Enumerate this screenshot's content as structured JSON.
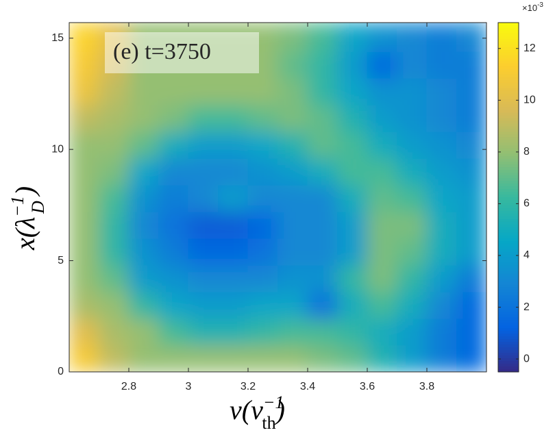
{
  "chart_data": {
    "type": "heatmap",
    "annotation": "(e) t=3750",
    "xlabel": {
      "text": "v(v",
      "sub": "th",
      "sup": "−1",
      "close": ")"
    },
    "ylabel": {
      "text": "x(λ",
      "sub": "D",
      "sup": "−1",
      "close": ")"
    },
    "x": [
      2.65,
      2.75,
      2.85,
      2.95,
      3.05,
      3.15,
      3.25,
      3.35,
      3.45,
      3.55,
      3.65,
      3.75,
      3.85,
      3.95
    ],
    "y": [
      0.6,
      1.8,
      3.0,
      4.2,
      5.4,
      6.6,
      7.8,
      9.0,
      10.2,
      11.4,
      12.6,
      13.8,
      15.0
    ],
    "z": [
      [
        11,
        9,
        8,
        8,
        8,
        8,
        8,
        8,
        7.5,
        7,
        5.5,
        4,
        2.5,
        1.5
      ],
      [
        10,
        8.5,
        8,
        6.5,
        5.5,
        5.5,
        6,
        6.5,
        6.5,
        6,
        5,
        4,
        2.5,
        1.5
      ],
      [
        8.5,
        8,
        6,
        4.5,
        4,
        4,
        4.5,
        4.5,
        2,
        5,
        6.5,
        5,
        3,
        1.5
      ],
      [
        8,
        7,
        4,
        3.5,
        3,
        3,
        3,
        3.5,
        3.5,
        6,
        7.5,
        6,
        4,
        2.5
      ],
      [
        8,
        6,
        3.5,
        2.5,
        1.5,
        1.5,
        2,
        3,
        3,
        4,
        7.5,
        7,
        5,
        4
      ],
      [
        8,
        6,
        3,
        2,
        1,
        1,
        1.5,
        3,
        3,
        4,
        7.5,
        7.5,
        5,
        4
      ],
      [
        8,
        6.5,
        3.5,
        2.5,
        3,
        4,
        3,
        3,
        3,
        5,
        7,
        6.5,
        4.5,
        4
      ],
      [
        8,
        7.5,
        4.5,
        3,
        3,
        3,
        3.5,
        4,
        5,
        6.5,
        6.5,
        5,
        4,
        3.5
      ],
      [
        8,
        8,
        7,
        5,
        4,
        4,
        4.5,
        5.5,
        7,
        6.5,
        5,
        4,
        3.5,
        3
      ],
      [
        9,
        8.5,
        8,
        7.5,
        6.5,
        6.5,
        7,
        7.5,
        7,
        5.5,
        4,
        3.5,
        3,
        2.5
      ],
      [
        10.5,
        9,
        8,
        8,
        8,
        8,
        8,
        7.5,
        6,
        4.5,
        3.5,
        3.5,
        3,
        2.5
      ],
      [
        11,
        9.5,
        8,
        8,
        8,
        8,
        8,
        7,
        6,
        4,
        1.5,
        3,
        2.5,
        2.5
      ],
      [
        11.5,
        10,
        8,
        8,
        8,
        8,
        8,
        7.5,
        6.5,
        4.5,
        3.5,
        3,
        2.5,
        3
      ]
    ],
    "xlim": [
      2.6,
      4.0
    ],
    "xticks": [
      2.8,
      3,
      3.2,
      3.4,
      3.6,
      3.8
    ],
    "ylim": [
      0,
      15.7
    ],
    "yticks": [
      0,
      5,
      10,
      15
    ],
    "colormap": "parula",
    "clim": [
      -0.5,
      13
    ],
    "cticks": [
      0,
      2,
      4,
      6,
      8,
      10,
      12
    ],
    "colorbar_scale": {
      "base": "×10",
      "exponent": "-3"
    }
  }
}
